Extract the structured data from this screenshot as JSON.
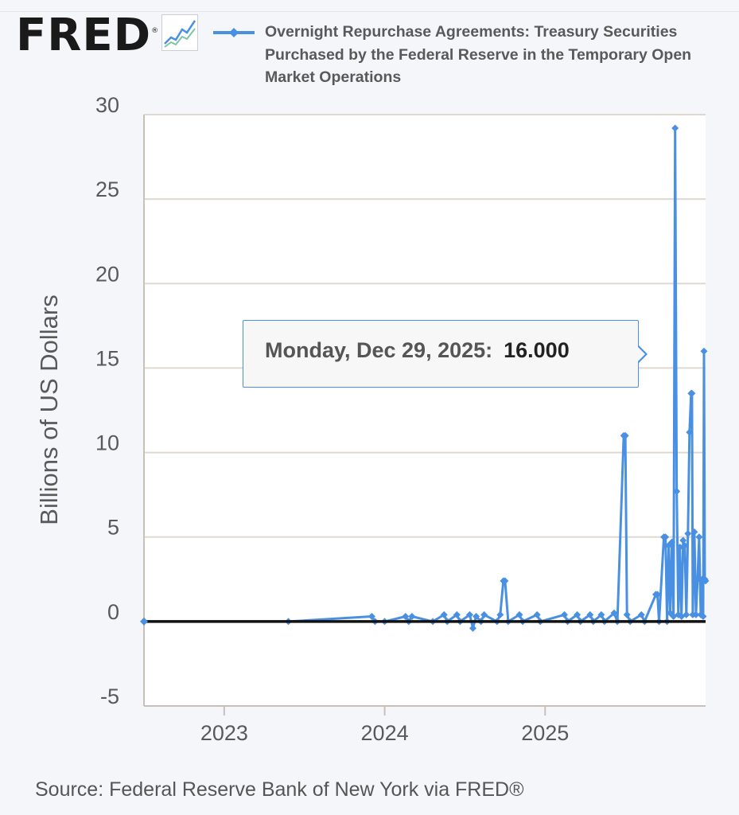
{
  "header": {
    "logo_text": "FRED",
    "logo_mark": "®",
    "legend_label": "Overnight Repurchase Agreements: Treasury Securities Purchased by the Federal Reserve in the Temporary Open Market Operations"
  },
  "tooltip": {
    "date": "Monday, Dec 29, 2025:",
    "value": "16.000"
  },
  "source": "Source: Federal Reserve Bank of New York via FRED®",
  "colors": {
    "series": "#4a90e2",
    "grid": "#e0d8d0",
    "axis_text": "#595959"
  },
  "chart_data": {
    "type": "line",
    "title": "Overnight Repurchase Agreements: Treasury Securities Purchased by the Federal Reserve in the Temporary Open Market Operations",
    "xlabel": "",
    "ylabel": "Billions of US Dollars",
    "ylim": [
      -5,
      30
    ],
    "xlim": [
      2022.5,
      2026.0
    ],
    "yticks": [
      -5,
      0,
      5,
      10,
      15,
      20,
      25,
      30
    ],
    "ytick_labels": [
      "-5",
      "0",
      "5",
      "10",
      "15",
      "20",
      "25",
      "30"
    ],
    "xticks": [
      2023,
      2024,
      2025
    ],
    "xtick_labels": [
      "2023",
      "2024",
      "2025"
    ],
    "grid": true,
    "series": [
      {
        "name": "Overnight Repurchase Agreements: Treasury Securities Purchased by the Federal Reserve in the Temporary Open Market Operations",
        "x": [
          2022.5,
          2023.4,
          2023.92,
          2023.94,
          2024.0,
          2024.13,
          2024.15,
          2024.17,
          2024.3,
          2024.37,
          2024.39,
          2024.45,
          2024.47,
          2024.53,
          2024.55,
          2024.57,
          2024.6,
          2024.62,
          2024.7,
          2024.72,
          2024.74,
          2024.75,
          2024.77,
          2024.84,
          2024.86,
          2024.95,
          2024.97,
          2025.12,
          2025.14,
          2025.2,
          2025.22,
          2025.28,
          2025.3,
          2025.35,
          2025.37,
          2025.43,
          2025.45,
          2025.49,
          2025.5,
          2025.51,
          2025.53,
          2025.6,
          2025.62,
          2025.69,
          2025.7,
          2025.71,
          2025.74,
          2025.75,
          2025.76,
          2025.77,
          2025.78,
          2025.79,
          2025.8,
          2025.81,
          2025.82,
          2025.83,
          2025.84,
          2025.85,
          2025.86,
          2025.87,
          2025.88,
          2025.89,
          2025.9,
          2025.91,
          2025.915,
          2025.92,
          2025.93,
          2025.94,
          2025.95,
          2025.96,
          2025.97,
          2025.98,
          2025.985,
          2025.99,
          2025.995,
          2026.0
        ],
        "values": [
          0,
          0,
          0.3,
          0,
          0,
          0.3,
          0,
          0.3,
          0,
          0.4,
          0,
          0.4,
          0,
          0.4,
          -0.4,
          0.3,
          0,
          0.4,
          0,
          0.4,
          2.4,
          2.4,
          0,
          0.4,
          0,
          0.4,
          0,
          0.4,
          0,
          0.4,
          0,
          0.4,
          0,
          0.4,
          0,
          0.5,
          0,
          11.0,
          11.0,
          0.4,
          0,
          0.4,
          0,
          1.6,
          1.6,
          0,
          5.0,
          5.0,
          0,
          4.5,
          0.5,
          4.7,
          0.3,
          29.2,
          7.7,
          0.4,
          4.4,
          0.3,
          4.8,
          4.5,
          0.4,
          5.2,
          11.2,
          13.5,
          13.5,
          0.4,
          5.3,
          0.4,
          2.5,
          5.0,
          0.4,
          2.5,
          0.3,
          16.0,
          2.5,
          2.4
        ]
      }
    ]
  }
}
